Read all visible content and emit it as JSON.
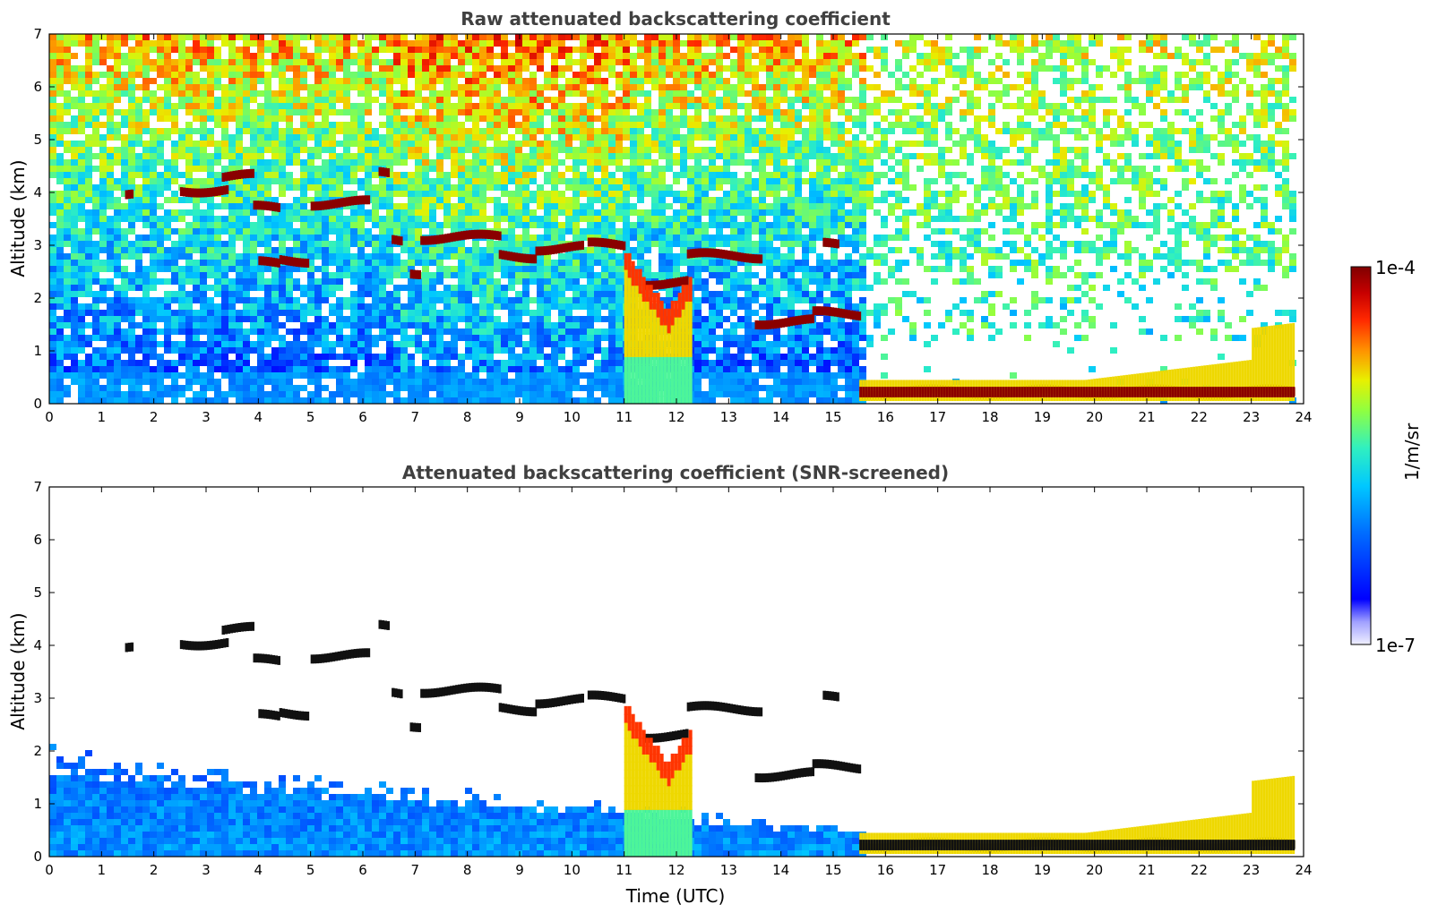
{
  "chart_data": [
    {
      "type": "heatmap",
      "title": "Raw attenuated backscattering coefficient",
      "xlabel": "",
      "ylabel": "Altitude (km)",
      "xlim": [
        0,
        24
      ],
      "ylim": [
        0,
        7
      ],
      "xticks": [
        "0",
        "1",
        "2",
        "3",
        "4",
        "5",
        "6",
        "7",
        "8",
        "9",
        "10",
        "11",
        "12",
        "13",
        "14",
        "15",
        "16",
        "17",
        "18",
        "19",
        "20",
        "21",
        "22",
        "23",
        "24"
      ],
      "yticks": [
        "0",
        "1",
        "2",
        "3",
        "4",
        "5",
        "6",
        "7"
      ],
      "features": {
        "boundary_layer_top_km": 0.8,
        "noise_level_high_altitude": "high",
        "clouds": [
          {
            "t": [
              1.45,
              1.6
            ],
            "alt": 3.92
          },
          {
            "t": [
              2.5,
              3.4
            ],
            "alt": 4.05
          },
          {
            "t": [
              3.3,
              3.9
            ],
            "alt": 4.3
          },
          {
            "t": [
              3.9,
              4.4
            ],
            "alt": 3.7
          },
          {
            "t": [
              4.0,
              4.4
            ],
            "alt": 2.65
          },
          {
            "t": [
              4.4,
              4.95
            ],
            "alt": 2.72
          },
          {
            "t": [
              5.0,
              6.1
            ],
            "alt": 3.8
          },
          {
            "t": [
              6.3,
              6.5
            ],
            "alt": 4.35
          },
          {
            "t": [
              6.55,
              6.75
            ],
            "alt": 3.1
          },
          {
            "t": [
              6.9,
              7.1
            ],
            "alt": 2.5
          },
          {
            "t": [
              7.1,
              8.6
            ],
            "alt": 3.15
          },
          {
            "t": [
              8.6,
              9.3
            ],
            "alt": 2.8
          },
          {
            "t": [
              9.3,
              10.2
            ],
            "alt": 2.95
          },
          {
            "t": [
              10.3,
              11.0
            ],
            "alt": 3.0
          },
          {
            "t": [
              11.4,
              12.2
            ],
            "alt": 2.3
          },
          {
            "t": [
              12.2,
              13.6
            ],
            "alt": 2.8
          },
          {
            "t": [
              13.5,
              14.6
            ],
            "alt": 1.55
          },
          {
            "t": [
              14.6,
              15.5
            ],
            "alt": 1.7
          },
          {
            "t": [
              14.8,
              15.1
            ],
            "alt": 3.0
          },
          {
            "t": [
              15.5,
              23.8
            ],
            "alt": 0.22
          }
        ]
      }
    },
    {
      "type": "heatmap",
      "title": "Attenuated backscattering coefficient (SNR-screened)",
      "xlabel": "Time (UTC)",
      "ylabel": "Altitude (km)",
      "xlim": [
        0,
        24
      ],
      "ylim": [
        0,
        7
      ],
      "xticks": [
        "0",
        "1",
        "2",
        "3",
        "4",
        "5",
        "6",
        "7",
        "8",
        "9",
        "10",
        "11",
        "12",
        "13",
        "14",
        "15",
        "16",
        "17",
        "18",
        "19",
        "20",
        "21",
        "22",
        "23",
        "24"
      ],
      "yticks": [
        "0",
        "1",
        "2",
        "3",
        "4",
        "5",
        "6",
        "7"
      ],
      "features": {
        "screening": "SNR",
        "boundary_layer_top_km_start": 2.0,
        "boundary_layer_top_km_end": 0.5
      }
    }
  ],
  "colorbar": {
    "label": "1/m/sr",
    "max_label": "1e-4",
    "min_label": "1e-7",
    "scale": "log",
    "colormap": "jet",
    "colors": [
      "#f0f0ff",
      "#c8c8ff",
      "#9696ff",
      "#0000ff",
      "#0050ff",
      "#00a0ff",
      "#00e0f0",
      "#40ff80",
      "#c0ff00",
      "#ffe000",
      "#ff8000",
      "#ff2000",
      "#c00000",
      "#800000"
    ]
  }
}
